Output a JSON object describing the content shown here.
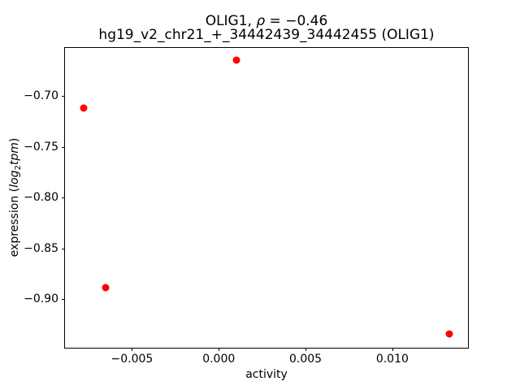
{
  "figure": {
    "title": {
      "line1_prefix": "OLIG1, ",
      "line1_rho": "ρ",
      "line1_suffix": " = −0.46",
      "line2": "hg19_v2_chr21_+_34442439_34442455 (OLIG1)"
    },
    "xlabel": "activity",
    "ylabel": {
      "prefix": "expression (",
      "func": "log",
      "sub": "2",
      "var": "tpm",
      "suffix": ")"
    }
  },
  "chart_data": {
    "type": "scatter",
    "title": "OLIG1, ρ = −0.46\nhg19_v2_chr21_+_34442439_34442455 (OLIG1)",
    "xlabel": "activity",
    "ylabel": "expression (log2 tpm)",
    "xlim": [
      -0.00886,
      0.01436
    ],
    "ylim": [
      -0.9479,
      -0.6527
    ],
    "grid": false,
    "legend": false,
    "xticks": {
      "values": [
        -0.005,
        0.0,
        0.005,
        0.01
      ],
      "labels": [
        "−0.005",
        "0.000",
        "0.005",
        "0.010"
      ]
    },
    "yticks": {
      "values": [
        -0.7,
        -0.75,
        -0.8,
        -0.85,
        -0.9
      ],
      "labels": [
        "−0.70",
        "−0.75",
        "−0.80",
        "−0.85",
        "−0.90"
      ]
    },
    "series": [
      {
        "name": "samples",
        "marker": "circle",
        "color": "#ff0000",
        "points": [
          {
            "x": 0.001,
            "y": -0.665
          },
          {
            "x": -0.0078,
            "y": -0.712
          },
          {
            "x": -0.0065,
            "y": -0.889
          },
          {
            "x": 0.0133,
            "y": -0.934
          }
        ]
      }
    ]
  },
  "colors": {
    "point": "#ff0000",
    "axis": "#000000",
    "text": "#000000",
    "background": "#ffffff"
  }
}
